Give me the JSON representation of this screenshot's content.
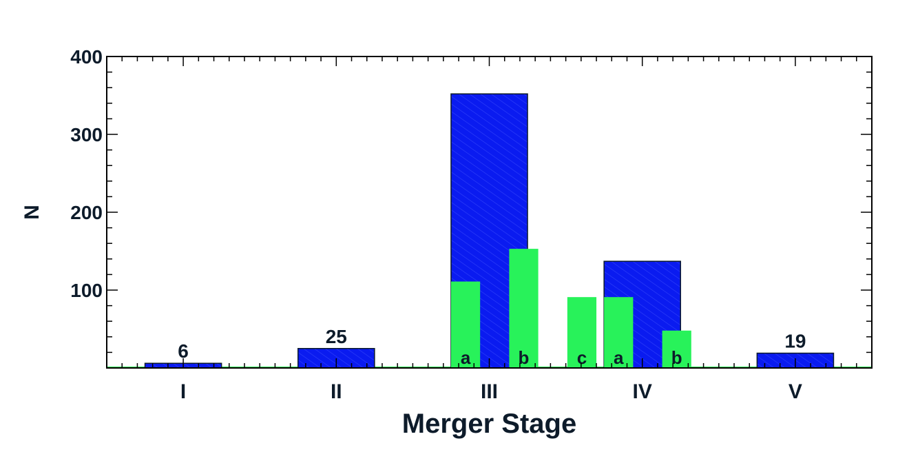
{
  "chart_data": {
    "type": "bar",
    "title": "",
    "xlabel": "Merger Stage",
    "ylabel": "N",
    "ylim": [
      0,
      400
    ],
    "yticks": [
      100,
      200,
      300,
      400
    ],
    "categories": [
      "I",
      "II",
      "III",
      "IV",
      "V"
    ],
    "series": [
      {
        "values": [
          6,
          25,
          352,
          137,
          19
        ],
        "value_labels": [
          "6",
          "25",
          "",
          "",
          "19"
        ],
        "color": "#0a1bf0"
      },
      {
        "substages": [
          {
            "category": "III",
            "label": "a",
            "value": 111
          },
          {
            "category": "III",
            "label": "b",
            "value": 153
          },
          {
            "category": "III",
            "label": "c",
            "value": 91
          },
          {
            "category": "IV",
            "label": "a",
            "value": 91
          },
          {
            "category": "IV",
            "label": "b",
            "value": 48
          }
        ],
        "color": "#28f25a"
      }
    ],
    "grid": false,
    "legend": "none"
  }
}
